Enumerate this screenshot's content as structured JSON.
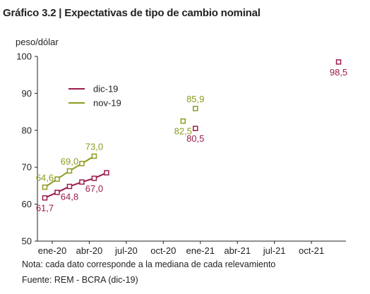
{
  "title": "Gráfico 3.2 | Expectativas de tipo de cambio nominal",
  "note": "Nota: cada dato corresponde a la mediana de cada relevamiento",
  "source": "Fuente: REM - BCRA (dic-19)",
  "colors": {
    "dic19": "#9B1B4F",
    "nov19": "#8E9A1E",
    "axis": "#222222"
  },
  "chart_data": {
    "type": "line",
    "ylabel": "peso/dólar",
    "ylim": [
      50,
      100
    ],
    "yticks": [
      50,
      60,
      70,
      80,
      90,
      100
    ],
    "x_axis": {
      "ticks": [
        "ene-20",
        "abr-20",
        "jul-20",
        "oct-20",
        "ene-21",
        "abr-21",
        "jul-21",
        "oct-21"
      ],
      "tick_months": [
        0,
        3,
        6,
        9,
        12,
        15,
        18,
        21
      ],
      "range_months": [
        -1.2,
        23.8
      ]
    },
    "legend": {
      "placement": "top-left",
      "entries": [
        "dic-19",
        "nov-19"
      ]
    },
    "grid": false,
    "series": [
      {
        "name": "dic-19",
        "color": "#9B1B4F",
        "months": [
          -0.6,
          0.4,
          1.4,
          2.4,
          3.4,
          4.4,
          11.6,
          23.2
        ],
        "values": [
          61.7,
          63.2,
          64.8,
          66.0,
          67.0,
          68.5,
          80.5,
          98.5
        ],
        "connected": [
          true,
          true,
          true,
          true,
          true,
          true,
          false,
          false
        ]
      },
      {
        "name": "nov-19",
        "color": "#8E9A1E",
        "months": [
          -0.6,
          0.4,
          1.4,
          2.4,
          3.4,
          10.6,
          11.6
        ],
        "values": [
          64.6,
          66.8,
          69.0,
          71.0,
          73.0,
          82.5,
          85.9
        ],
        "connected": [
          true,
          true,
          true,
          true,
          true,
          false,
          false
        ]
      }
    ],
    "data_labels": [
      {
        "series": "dic-19",
        "month": -0.6,
        "value": 61.7,
        "text": "61,7",
        "pos": "below"
      },
      {
        "series": "dic-19",
        "month": 1.4,
        "value": 64.8,
        "text": "64,8",
        "pos": "below"
      },
      {
        "series": "dic-19",
        "month": 3.4,
        "value": 67.0,
        "text": "67,0",
        "pos": "below"
      },
      {
        "series": "dic-19",
        "month": 11.6,
        "value": 80.5,
        "text": "80,5",
        "pos": "below"
      },
      {
        "series": "dic-19",
        "month": 23.2,
        "value": 98.5,
        "text": "98,5",
        "pos": "below"
      },
      {
        "series": "nov-19",
        "month": -0.6,
        "value": 64.6,
        "text": "64,6",
        "pos": "above"
      },
      {
        "series": "nov-19",
        "month": 1.4,
        "value": 69.0,
        "text": "69,0",
        "pos": "above"
      },
      {
        "series": "nov-19",
        "month": 3.4,
        "value": 73.0,
        "text": "73,0",
        "pos": "above"
      },
      {
        "series": "nov-19",
        "month": 10.6,
        "value": 82.5,
        "text": "82,5",
        "pos": "below"
      },
      {
        "series": "nov-19",
        "month": 11.6,
        "value": 85.9,
        "text": "85,9",
        "pos": "above"
      }
    ]
  }
}
